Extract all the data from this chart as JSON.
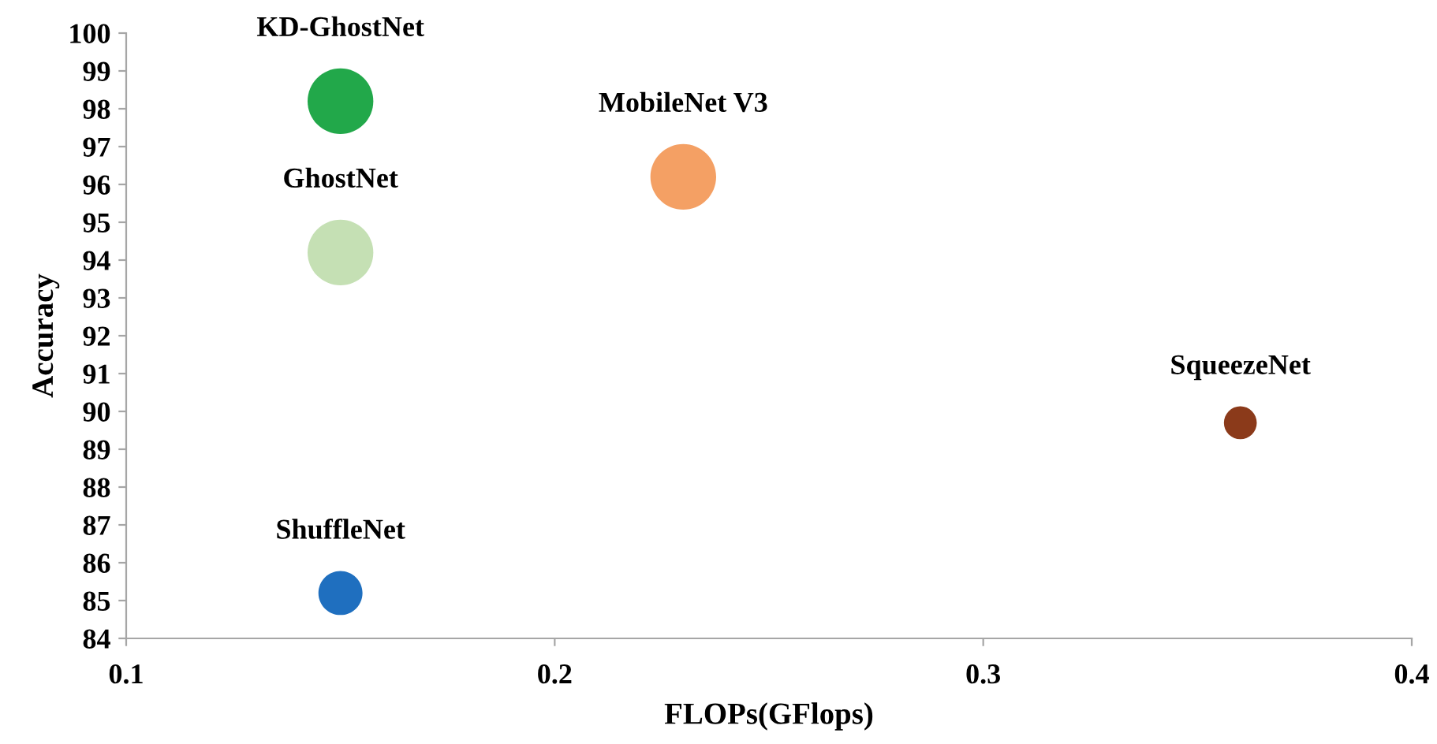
{
  "chart_data": {
    "type": "bubble",
    "xlabel": "FLOPs(GFlops)",
    "ylabel": "Accuracy",
    "xlim": [
      0.1,
      0.4
    ],
    "xticks": [
      0.1,
      0.2,
      0.3,
      0.4
    ],
    "ylim": [
      84,
      100
    ],
    "yticks": [
      84,
      85,
      86,
      87,
      88,
      89,
      90,
      91,
      92,
      93,
      94,
      95,
      96,
      97,
      98,
      99,
      100
    ],
    "grid": false,
    "legend": false,
    "series": [
      {
        "name": "KD-GhostNet",
        "color": "#22a84a",
        "x": [
          0.15
        ],
        "values": [
          98.2
        ],
        "sizes": [
          1
        ]
      },
      {
        "name": "GhostNet",
        "color": "#c5e0b4",
        "x": [
          0.15
        ],
        "values": [
          94.2
        ],
        "sizes": [
          1
        ]
      },
      {
        "name": "MobileNet V3",
        "color": "#f4a064",
        "x": [
          0.23
        ],
        "values": [
          96.2
        ],
        "sizes": [
          1
        ]
      },
      {
        "name": "SqueezeNet",
        "color": "#8b3a1a",
        "x": [
          0.36
        ],
        "values": [
          89.7
        ],
        "sizes": [
          0.25
        ]
      },
      {
        "name": "ShuffleNet",
        "color": "#1f6fbf",
        "x": [
          0.15
        ],
        "values": [
          85.2
        ],
        "sizes": [
          0.45
        ]
      }
    ]
  }
}
